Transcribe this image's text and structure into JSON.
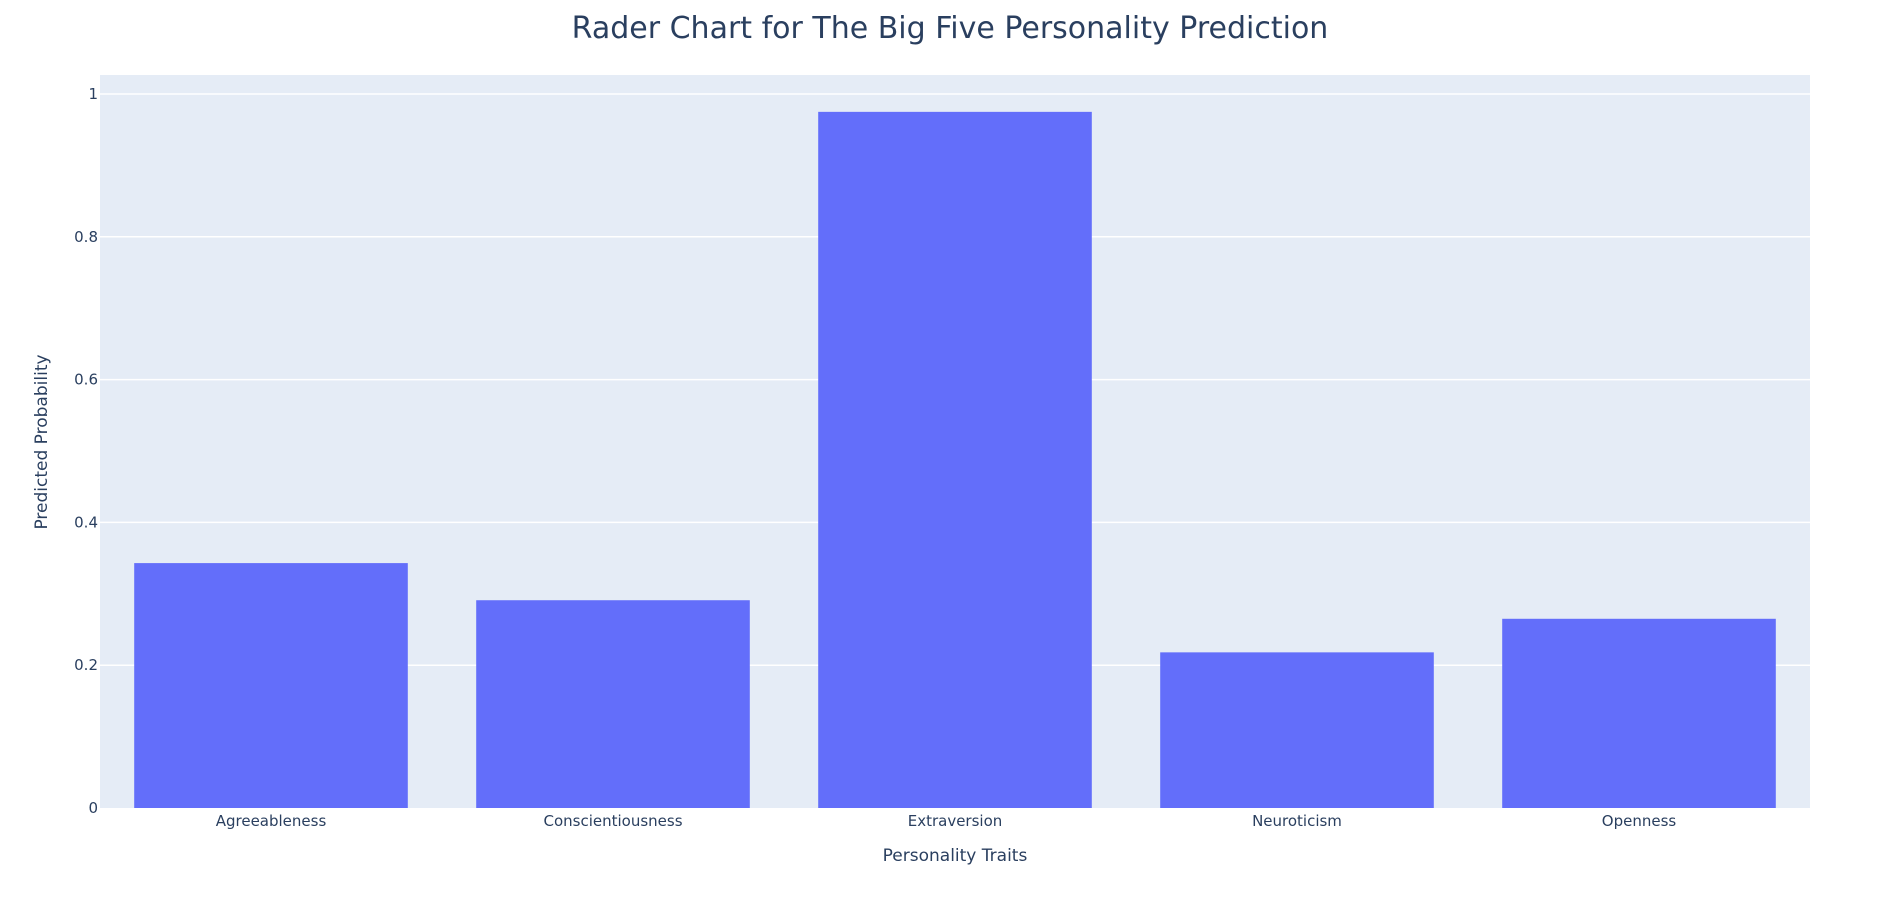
{
  "chart_data": {
    "type": "bar",
    "title": "Rader Chart for The Big Five Personality Prediction",
    "xlabel": "Personality Traits",
    "ylabel": "Predicted Probability",
    "categories": [
      "Agreeableness",
      "Conscientiousness",
      "Extraversion",
      "Neuroticism",
      "Openness"
    ],
    "values": [
      0.343,
      0.291,
      0.975,
      0.218,
      0.265
    ],
    "ylim": [
      0,
      1
    ],
    "yticks": [
      0,
      0.2,
      0.4,
      0.6,
      0.8,
      1
    ],
    "ytick_labels": [
      "0",
      "0.2",
      "0.4",
      "0.6",
      "0.8",
      "1"
    ],
    "grid": true,
    "legend": "none"
  },
  "colors": {
    "bar": "#636efa",
    "plot_background": "#e5ecf6",
    "gridline": "#ffffff",
    "text": "#2a3f5f"
  }
}
